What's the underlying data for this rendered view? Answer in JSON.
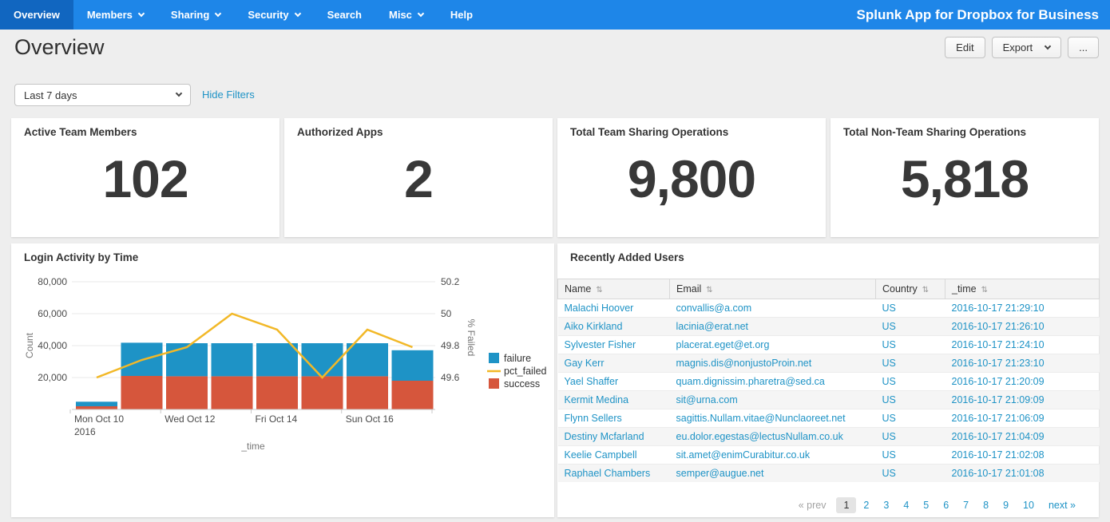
{
  "colors": {
    "navbar_bg": "#1e86e8",
    "navbar_active_bg": "#1166c0",
    "link": "#1e93c6"
  },
  "nav": {
    "app_title": "Splunk App for Dropbox for Business",
    "items": [
      {
        "label": "Overview",
        "active": true,
        "has_caret": false
      },
      {
        "label": "Members",
        "active": false,
        "has_caret": true
      },
      {
        "label": "Sharing",
        "active": false,
        "has_caret": true
      },
      {
        "label": "Security",
        "active": false,
        "has_caret": true
      },
      {
        "label": "Search",
        "active": false,
        "has_caret": false
      },
      {
        "label": "Misc",
        "active": false,
        "has_caret": true
      },
      {
        "label": "Help",
        "active": false,
        "has_caret": false
      }
    ]
  },
  "header": {
    "title": "Overview",
    "edit_label": "Edit",
    "export_label": "Export",
    "more_label": "..."
  },
  "filters": {
    "time_range": "Last 7 days",
    "hide_filters_label": "Hide Filters"
  },
  "kpis": [
    {
      "title": "Active Team Members",
      "value": "102"
    },
    {
      "title": "Authorized Apps",
      "value": "2"
    },
    {
      "title": "Total Team Sharing Operations",
      "value": "9,800"
    },
    {
      "title": "Total Non-Team Sharing Operations",
      "value": "5,818"
    }
  ],
  "chart_panel": {
    "title": "Login Activity by Time"
  },
  "chart_data": {
    "type": "bar",
    "subtype": "stacked bars with overlay line",
    "categories": [
      "Mon Oct 10",
      "Tue Oct 11",
      "Wed Oct 12",
      "Thu Oct 13",
      "Fri Oct 14",
      "Sat Oct 15",
      "Sun Oct 16",
      "Mon Oct 17"
    ],
    "series": [
      {
        "name": "success",
        "type": "bar",
        "axis": "left",
        "color": "#d6563c",
        "values": [
          2000,
          21000,
          20800,
          20800,
          20800,
          20800,
          20800,
          18000
        ]
      },
      {
        "name": "failure",
        "type": "bar",
        "axis": "left",
        "color": "#1e93c6",
        "values": [
          2850,
          20800,
          20700,
          20700,
          20700,
          20700,
          20700,
          19100
        ]
      },
      {
        "name": "pct_failed",
        "type": "line",
        "axis": "right",
        "color": "#f2b827",
        "values": [
          49.6,
          49.71,
          49.79,
          50.0,
          49.9,
          49.6,
          49.9,
          49.79
        ]
      }
    ],
    "left_axis": {
      "label": "Count",
      "tick_labels": [
        "20,000",
        "40,000",
        "60,000",
        "80,000"
      ],
      "tick_values": [
        20000,
        40000,
        60000,
        80000
      ],
      "min": 0,
      "max": 85000
    },
    "right_axis": {
      "label": "% Failed",
      "tick_labels": [
        "49.6",
        "49.8",
        "50",
        "50.2"
      ],
      "tick_values": [
        49.6,
        49.8,
        50,
        50.2
      ],
      "min": 49.5,
      "max": 50.25
    },
    "xlabel": "_time",
    "x_ticks": [
      {
        "pos": 0,
        "label": "Mon Oct 10",
        "sublabel": "2016"
      },
      {
        "pos": 1,
        "label": "Wed Oct 12"
      },
      {
        "pos": 2,
        "label": "Fri Oct 14"
      },
      {
        "pos": 3,
        "label": "Sun Oct 16"
      }
    ],
    "legend": [
      {
        "name": "failure",
        "shape": "square",
        "color": "#1e93c6"
      },
      {
        "name": "pct_failed",
        "shape": "line",
        "color": "#f2b827"
      },
      {
        "name": "success",
        "shape": "square",
        "color": "#d6563c"
      }
    ],
    "grid": "horizontal",
    "legend_position": "right"
  },
  "table_panel": {
    "title": "Recently Added Users",
    "columns": [
      "Name",
      "Email",
      "Country",
      "_time"
    ],
    "rows": [
      [
        "Malachi Hoover",
        "convallis@a.com",
        "US",
        "2016-10-17 21:29:10"
      ],
      [
        "Aiko Kirkland",
        "lacinia@erat.net",
        "US",
        "2016-10-17 21:26:10"
      ],
      [
        "Sylvester Fisher",
        "placerat.eget@et.org",
        "US",
        "2016-10-17 21:24:10"
      ],
      [
        "Gay Kerr",
        "magnis.dis@nonjustoProin.net",
        "US",
        "2016-10-17 21:23:10"
      ],
      [
        "Yael Shaffer",
        "quam.dignissim.pharetra@sed.ca",
        "US",
        "2016-10-17 21:20:09"
      ],
      [
        "Kermit Medina",
        "sit@urna.com",
        "US",
        "2016-10-17 21:09:09"
      ],
      [
        "Flynn Sellers",
        "sagittis.Nullam.vitae@Nunclaoreet.net",
        "US",
        "2016-10-17 21:06:09"
      ],
      [
        "Destiny Mcfarland",
        "eu.dolor.egestas@lectusNullam.co.uk",
        "US",
        "2016-10-17 21:04:09"
      ],
      [
        "Keelie Campbell",
        "sit.amet@enimCurabitur.co.uk",
        "US",
        "2016-10-17 21:02:08"
      ],
      [
        "Raphael Chambers",
        "semper@augue.net",
        "US",
        "2016-10-17 21:01:08"
      ]
    ],
    "pagination": {
      "prev_label": "« prev",
      "pages": [
        "1",
        "2",
        "3",
        "4",
        "5",
        "6",
        "7",
        "8",
        "9",
        "10"
      ],
      "current": "1",
      "next_label": "next »"
    }
  }
}
